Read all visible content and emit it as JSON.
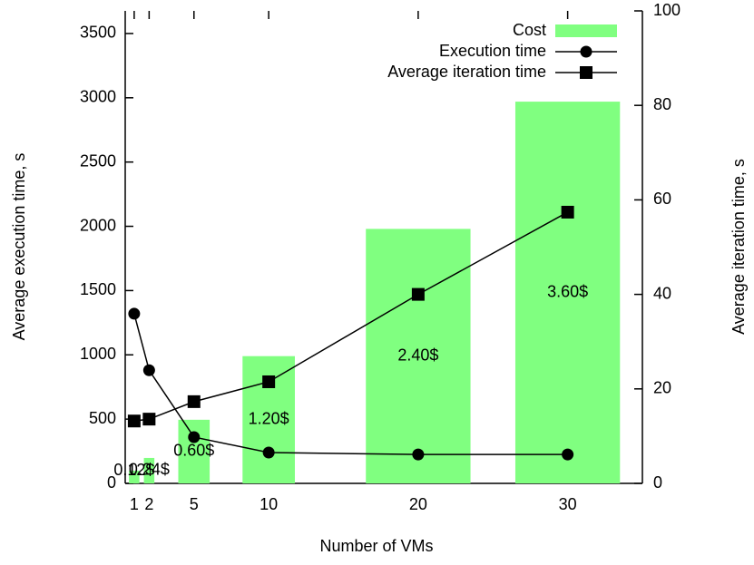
{
  "chart_data": {
    "type": "combo",
    "x": [
      1,
      2,
      5,
      10,
      20,
      30
    ],
    "xlim": [
      0.4,
      35
    ],
    "xticks": [
      1,
      2,
      5,
      10,
      20,
      30
    ],
    "xlabel": "Number of VMs",
    "ylabel": "Average execution time, s",
    "y2label": "Average iteration time, s",
    "ylim": [
      0,
      3676
    ],
    "yticks": [
      0,
      500,
      1000,
      1500,
      2000,
      2500,
      3000,
      3500
    ],
    "y2lim": [
      0,
      100
    ],
    "y2ticks": [
      0,
      20,
      40,
      60,
      80,
      100
    ],
    "y3lim": [
      0,
      4.456
    ],
    "legend": "top right",
    "series": [
      {
        "name": "Cost",
        "type": "bar",
        "axis": "y3",
        "color": "#80ff80",
        "values": [
          0.12,
          0.24,
          0.6,
          1.2,
          2.4,
          3.6
        ],
        "value_labels": [
          "0.12$",
          "0.24$",
          "0.60$",
          "1.20$",
          "2.40$",
          "3.60$"
        ]
      },
      {
        "name": "Execution time",
        "type": "line",
        "marker": "circle",
        "color": "#000000",
        "values": [
          1320,
          880,
          360,
          240,
          225,
          225
        ]
      },
      {
        "name": "Average iteration time",
        "type": "line",
        "marker": "square",
        "axis": "y2",
        "color": "#000000",
        "values": [
          13.2,
          13.6,
          17.3,
          21.5,
          40,
          57.4
        ]
      }
    ]
  }
}
